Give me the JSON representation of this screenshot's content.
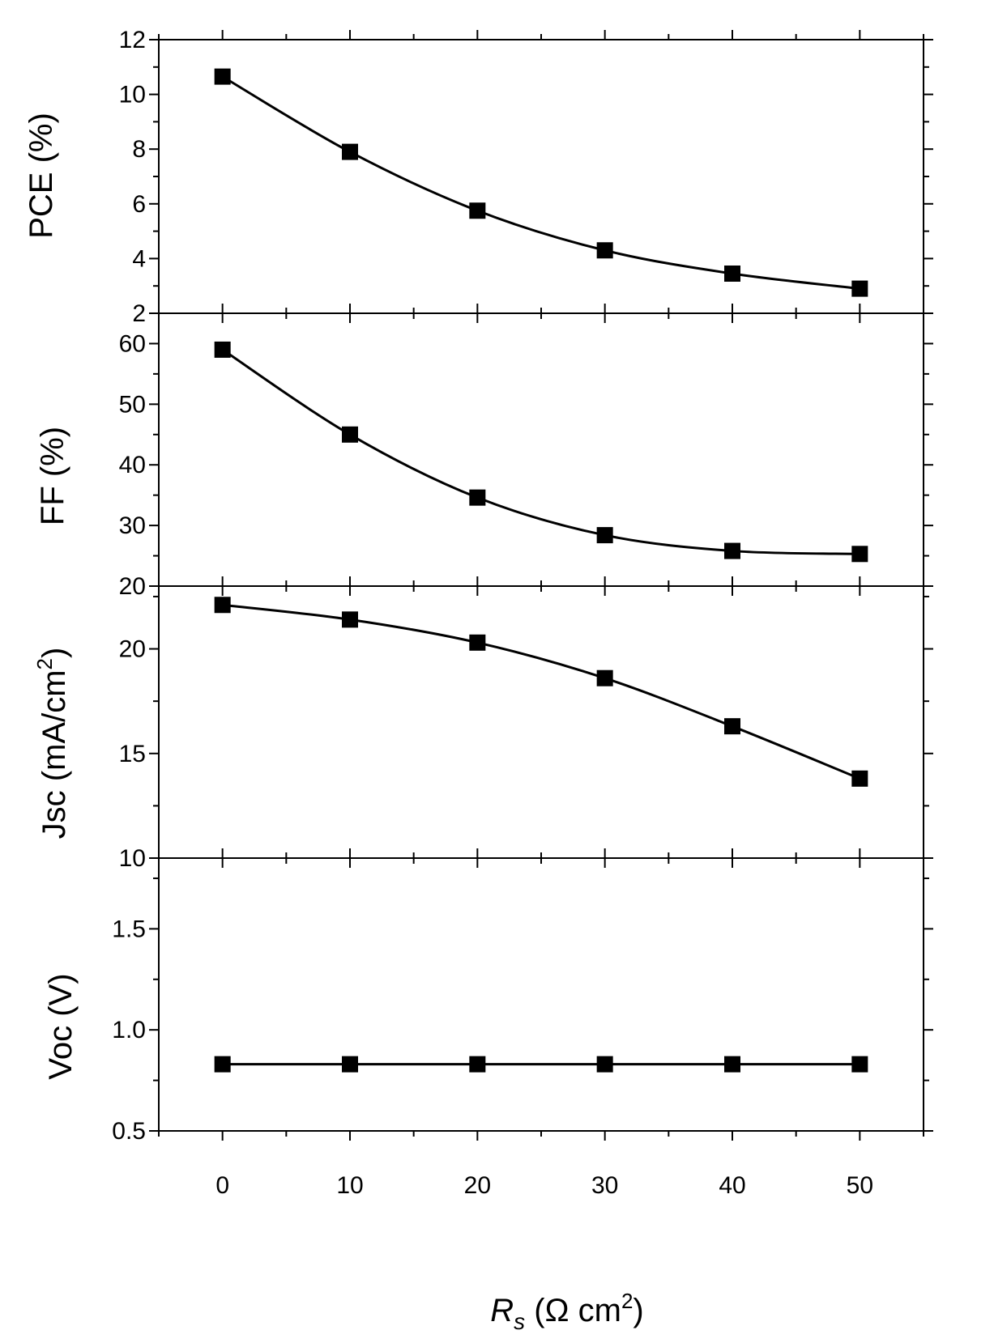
{
  "chart_data": {
    "type": "line",
    "shared_x": {
      "label_main": "R",
      "label_sub": "s",
      "label_unit": " (Ω cm",
      "label_sup": "2",
      "label_close": ")",
      "xlim": [
        -5,
        55
      ],
      "ticks": [
        0,
        10,
        20,
        30,
        40,
        50
      ],
      "tick_labels": [
        "0",
        "10",
        "20",
        "30",
        "40",
        "50"
      ]
    },
    "panels": [
      {
        "id": "pce",
        "ylabel": "PCE (%)",
        "ylim": [
          2,
          12
        ],
        "yticks": [
          2,
          4,
          6,
          8,
          10,
          12
        ],
        "ytick_labels": [
          "2",
          "4",
          "6",
          "8",
          "10",
          "12"
        ],
        "x": [
          0,
          10,
          20,
          30,
          40,
          50
        ],
        "values": [
          10.65,
          7.9,
          5.75,
          4.3,
          3.45,
          2.9
        ]
      },
      {
        "id": "ff",
        "ylabel": "FF (%)",
        "ylim": [
          20,
          65
        ],
        "yticks": [
          20,
          30,
          40,
          50,
          60
        ],
        "ytick_labels": [
          "20",
          "30",
          "40",
          "50",
          "60"
        ],
        "x": [
          0,
          10,
          20,
          30,
          40,
          50
        ],
        "values": [
          59,
          45,
          34.6,
          28.4,
          25.8,
          25.3
        ]
      },
      {
        "id": "jsc",
        "ylabel_main": "Jsc (mA/cm",
        "ylabel_sup": "2",
        "ylabel_close": ")",
        "ylim": [
          10,
          23
        ],
        "yticks": [
          10,
          15,
          20
        ],
        "ytick_labels": [
          "10",
          "15",
          "20"
        ],
        "x": [
          0,
          10,
          20,
          30,
          40,
          50
        ],
        "values": [
          22.1,
          21.4,
          20.3,
          18.6,
          16.3,
          13.8
        ]
      },
      {
        "id": "voc",
        "ylabel": "Voc (V)",
        "ylim": [
          0.5,
          1.85
        ],
        "yticks": [
          0.5,
          1.0,
          1.5
        ],
        "ytick_labels": [
          "0.5",
          "1.0",
          "1.5"
        ],
        "x": [
          0,
          10,
          20,
          30,
          40,
          50
        ],
        "values": [
          0.83,
          0.83,
          0.83,
          0.83,
          0.83,
          0.83
        ]
      }
    ],
    "style": {
      "line_color": "#000000",
      "marker": "square",
      "marker_color": "#000000"
    }
  }
}
